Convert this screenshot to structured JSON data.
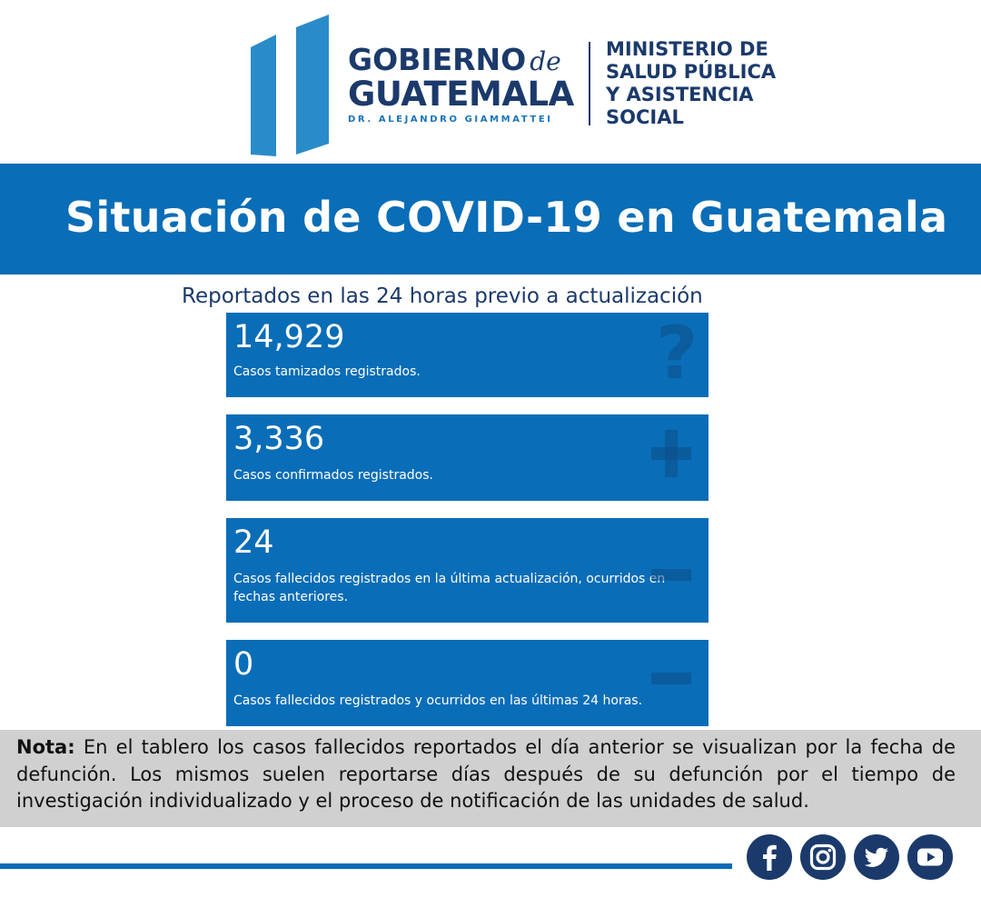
{
  "header": {
    "gobierno_line1": "GOBIERNO",
    "gobierno_de": "de",
    "gobierno_line2": "GUATEMALA",
    "president": "DR. ALEJANDRO GIAMMATTEI",
    "ministry_lines": [
      "MINISTERIO DE",
      "SALUD PÚBLICA",
      "Y ASISTENCIA",
      "SOCIAL"
    ]
  },
  "banner": {
    "title": "Situación de COVID-19 en Guatemala"
  },
  "subtitle": "Reportados en las 24 horas previo a actualización",
  "cards": [
    {
      "value": "14,929",
      "label": "Casos tamizados registrados.",
      "icon": "question-icon"
    },
    {
      "value": "3,336",
      "label": "Casos confirmados registrados.",
      "icon": "plus-icon"
    },
    {
      "value": "24",
      "label": "Casos fallecidos registrados en la última actualización, ocurridos en fechas anteriores.",
      "icon": "minus-icon"
    },
    {
      "value": "0",
      "label": "Casos fallecidos registrados y ocurridos en las últimas 24 horas.",
      "icon": "minus-icon"
    }
  ],
  "note": {
    "label": "Nota:",
    "text": "En el tablero los casos fallecidos reportados el día anterior se visualizan por la fecha de defunción. Los mismos suelen reportarse días después de su defunción por el tiempo de investigación individualizado y el proceso de notificación de las unidades de salud."
  },
  "social": [
    "facebook-icon",
    "instagram-icon",
    "twitter-icon",
    "youtube-icon"
  ],
  "colors": {
    "brand_blue": "#0a6db7",
    "navy": "#1b3a6b",
    "note_bg": "#d0d0d0"
  }
}
